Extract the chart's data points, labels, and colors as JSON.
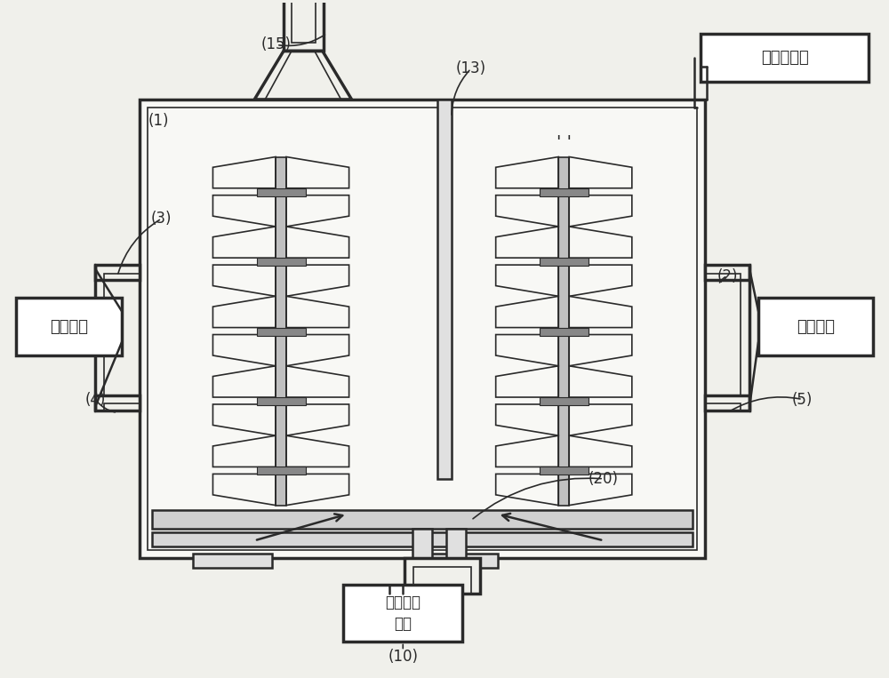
{
  "bg_color": "#f0f0eb",
  "line_color": "#2a2a2a",
  "labels": {
    "1": "(1)",
    "2": "(2)",
    "3": "(3)",
    "4": "(4)",
    "5": "(5)",
    "10": "(10)",
    "13": "(13)",
    "15": "(15)",
    "20": "(20)"
  },
  "box_labels": {
    "pulse_power": "脉冲电源",
    "dc_power": "直流电源",
    "bias_power": "偏置高频\n电源",
    "plasma_gas": "等离子气体"
  }
}
